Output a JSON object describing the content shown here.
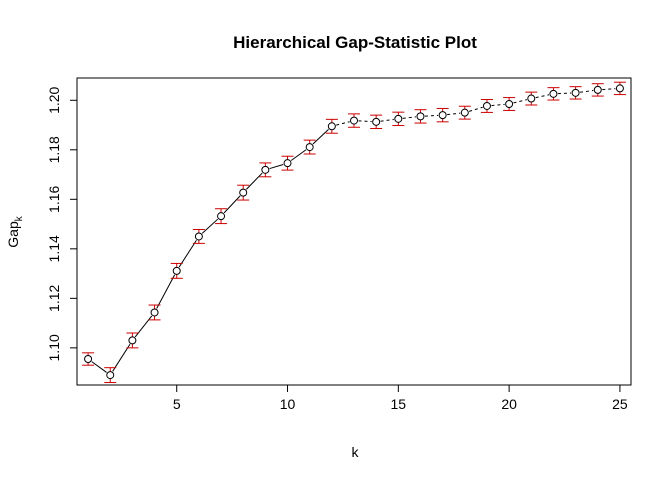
{
  "chart_data": {
    "type": "line",
    "title": "Hierarchical Gap-Statistic Plot",
    "xlabel": "k",
    "ylabel_base": "Gap",
    "ylabel_sub": "k",
    "xlim": [
      0.5,
      25.5
    ],
    "ylim": [
      1.085,
      1.209
    ],
    "x_ticks": [
      5,
      10,
      15,
      20,
      25
    ],
    "y_ticks": [
      "1.10",
      "1.12",
      "1.14",
      "1.16",
      "1.18",
      "1.20"
    ],
    "grid": false,
    "line_color": "#000000",
    "point_color": "#000000",
    "errorbar_color": "#cc0000",
    "series": [
      {
        "x": [
          1,
          2,
          3,
          4,
          5,
          6,
          7,
          8,
          9,
          10,
          11,
          12,
          13,
          14,
          15,
          16,
          17,
          18,
          19,
          20,
          21,
          22,
          23,
          24,
          25
        ],
        "y": [
          1.0955,
          1.089,
          1.103,
          1.1143,
          1.1311,
          1.145,
          1.1532,
          1.1627,
          1.1719,
          1.1746,
          1.1811,
          1.1895,
          1.1918,
          1.1913,
          1.1925,
          1.1935,
          1.194,
          1.195,
          1.1977,
          1.1985,
          1.2007,
          1.2026,
          1.203,
          1.2042,
          1.2048
        ],
        "err": [
          0.0025,
          0.003,
          0.003,
          0.003,
          0.003,
          0.0028,
          0.003,
          0.003,
          0.0028,
          0.0028,
          0.0028,
          0.0028,
          0.0027,
          0.0027,
          0.0027,
          0.0027,
          0.0027,
          0.0026,
          0.0026,
          0.0026,
          0.0026,
          0.0025,
          0.0025,
          0.0025,
          0.0025
        ]
      }
    ]
  }
}
